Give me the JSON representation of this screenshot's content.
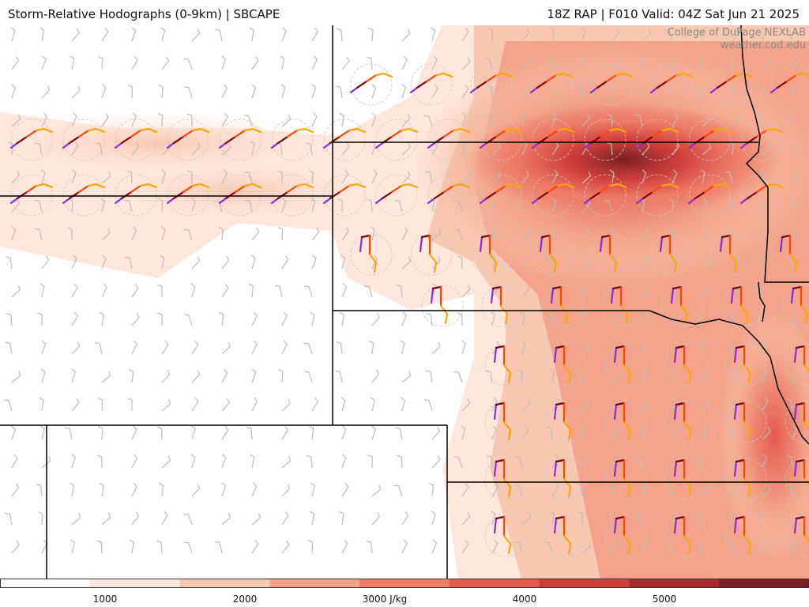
{
  "header": {
    "title": "Storm-Relative Hodographs (0-9km) | SBCAPE",
    "valid": "18Z RAP | F010 Valid: 04Z Sat Jun 21 2025"
  },
  "credit": {
    "line1": "College of DuPage NEXLAB",
    "line2": "weather.cod.edu"
  },
  "colorbar": {
    "colors": [
      "#ffffff",
      "#fde7dc",
      "#f9c8b3",
      "#f4a38a",
      "#ee7c66",
      "#e45a4c",
      "#cf3f3a",
      "#a82a2e",
      "#7c1f26"
    ],
    "ticks": [
      {
        "value": 1000,
        "label": "1000"
      },
      {
        "value": 2000,
        "label": "2000"
      },
      {
        "value": 3000,
        "label": "3000 J/kg"
      },
      {
        "value": 4000,
        "label": "4000"
      },
      {
        "value": 5000,
        "label": "5000"
      }
    ],
    "range": [
      0,
      6000
    ]
  },
  "hodograph_colors": [
    "#8a2be2",
    "#7a0000",
    "#ff4500",
    "#ffa500"
  ]
}
